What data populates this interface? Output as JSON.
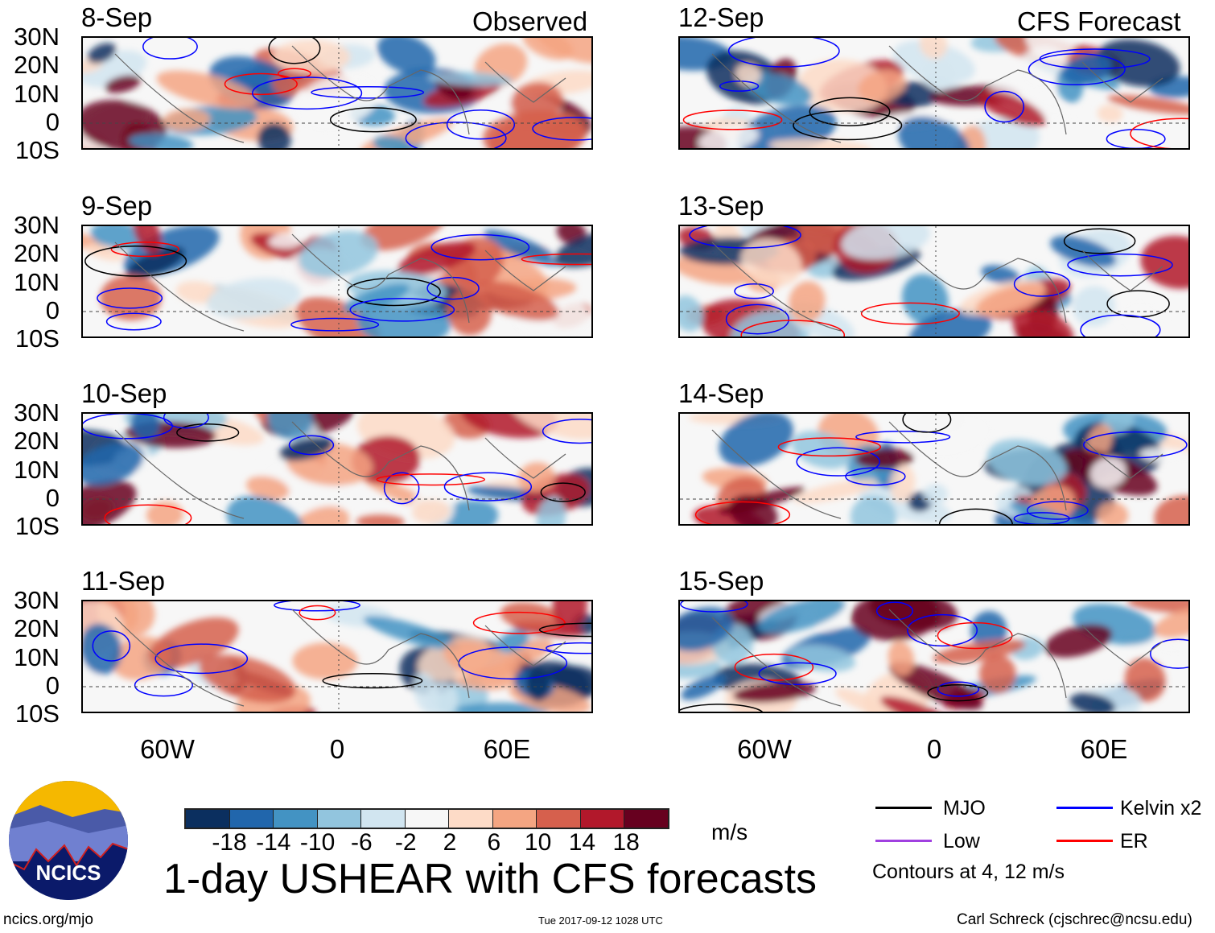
{
  "header": {
    "observed_label": "Observed",
    "forecast_label": "CFS Forecast"
  },
  "panels_left": [
    {
      "date": "8-Sep"
    },
    {
      "date": "9-Sep"
    },
    {
      "date": "10-Sep"
    },
    {
      "date": "11-Sep"
    }
  ],
  "panels_right": [
    {
      "date": "12-Sep"
    },
    {
      "date": "13-Sep"
    },
    {
      "date": "14-Sep"
    },
    {
      "date": "15-Sep"
    }
  ],
  "lat_labels": [
    "30N",
    "20N",
    "10N",
    "0",
    "10S"
  ],
  "lon_labels": [
    "60W",
    "0",
    "60E"
  ],
  "colorbar": {
    "ticks": [
      "-18",
      "-14",
      "-10",
      "-6",
      "-2",
      "2",
      "6",
      "10",
      "14",
      "18"
    ],
    "colors": [
      "#0b2f5f",
      "#2166ac",
      "#4393c3",
      "#92c5de",
      "#d1e5f0",
      "#f7f7f7",
      "#fddbc7",
      "#f4a582",
      "#d6604d",
      "#b2182b",
      "#67001f"
    ],
    "units": "m/s"
  },
  "title": "1-day USHEAR with CFS forecasts",
  "legend": {
    "items": [
      {
        "label": "MJO",
        "color": "#000000"
      },
      {
        "label": "Kelvin x2",
        "color": "#0000ff"
      },
      {
        "label": "Low",
        "color": "#a040e0"
      },
      {
        "label": "ER",
        "color": "#ff0000"
      }
    ],
    "note": "Contours at 4, 12 m/s"
  },
  "logo": {
    "text": "NCICS"
  },
  "footer": {
    "url": "ncics.org/mjo",
    "timestamp": "Tue 2017-09-12 1028 UTC",
    "credit": "Carl Schreck (cjschrec@ncsu.edu)"
  }
}
